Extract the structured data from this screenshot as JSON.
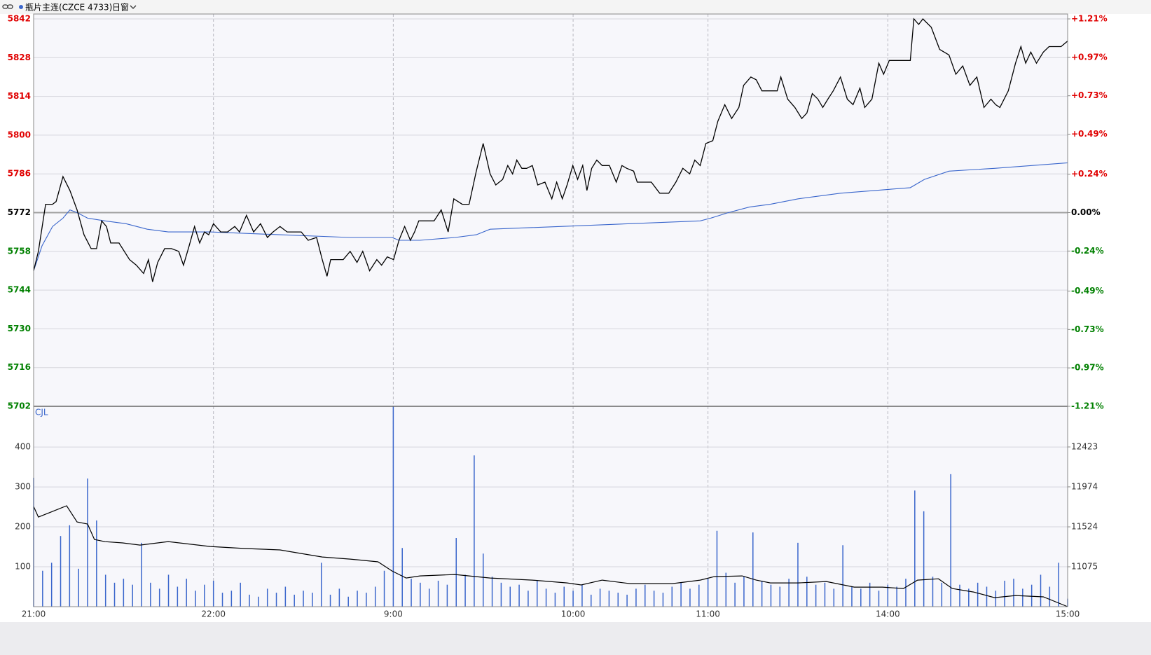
{
  "header": {
    "symbol": "瓶片主连(CZCE 4733)",
    "period": "日窗"
  },
  "chart_data": [
    {
      "type": "line",
      "xlim": [
        0,
        345
      ],
      "ylim": [
        5702,
        5842
      ],
      "yticks": [
        5842,
        5828,
        5814,
        5800,
        5786,
        5772,
        5758,
        5744,
        5730,
        5716,
        5702
      ],
      "y2lim": [
        -1.21,
        1.21
      ],
      "y2ticks": [
        {
          "value": 1.21,
          "label": "+1.21%"
        },
        {
          "value": 0.97,
          "label": "+0.97%"
        },
        {
          "value": 0.73,
          "label": "+0.73%"
        },
        {
          "value": 0.49,
          "label": "+0.49%"
        },
        {
          "value": 0.24,
          "label": "+0.24%"
        },
        {
          "value": 0,
          "label": "0.00%"
        },
        {
          "value": -0.24,
          "label": "-0.24%"
        },
        {
          "value": -0.49,
          "label": "-0.49%"
        },
        {
          "value": -0.73,
          "label": "-0.73%"
        },
        {
          "value": -0.97,
          "label": "-0.97%"
        },
        {
          "value": -1.21,
          "label": "-1.21%"
        }
      ],
      "up_color": "#e00000",
      "down_color": "#008000",
      "flat_color": "#000000",
      "grid": true,
      "series": [
        {
          "color": "#000000",
          "x": [
            0,
            1.6,
            4,
            6.3,
            7.5,
            9.8,
            12.1,
            14.5,
            16.8,
            19.2,
            21,
            22.7,
            24.3,
            25.7,
            28.5,
            32,
            34.3,
            36.7,
            38.3,
            39.7,
            41.4,
            43.7,
            46,
            48.4,
            50,
            51.9,
            53.7,
            55.4,
            57,
            58.4,
            60,
            62.4,
            64.7,
            67.1,
            68.7,
            71,
            73.4,
            75.7,
            78,
            79.9,
            82.2,
            84.6,
            89.3,
            91.6,
            94.4,
            96.3,
            97.9,
            99.1,
            103.3,
            105.6,
            107.9,
            109.8,
            112.1,
            114.5,
            116.1,
            118,
            120.1,
            121.9,
            123.8,
            125.7,
            127.1,
            128.5,
            131.3,
            133.6,
            136,
            138.3,
            140.2,
            143,
            145.3,
            147.7,
            150,
            152.3,
            154.2,
            156.5,
            158.2,
            159.8,
            161.2,
            162.9,
            164.5,
            166.4,
            168.2,
            170.6,
            172.9,
            174.5,
            176.4,
            178,
            179.9,
            181.5,
            183.2,
            184.6,
            186.2,
            187.9,
            189.7,
            192.1,
            194.4,
            196.3,
            197.9,
            200.2,
            201.4,
            206.1,
            208.9,
            211.9,
            214.3,
            216.6,
            218.9,
            220.6,
            222.4,
            224.3,
            226.6,
            228.3,
            230.6,
            232.9,
            235.3,
            236.9,
            239.3,
            241.1,
            243,
            245.8,
            248.1,
            249.3,
            251.6,
            254,
            256.3,
            258,
            259.8,
            261.7,
            263.3,
            265,
            266.8,
            269.2,
            271.5,
            273.4,
            275.7,
            277.3,
            279.7,
            282,
            283.6,
            285.5,
            288.3,
            292.5,
            293.7,
            295.3,
            296.7,
            299.5,
            302.3,
            305.4,
            307.7,
            310,
            312.4,
            314.7,
            317.1,
            319.4,
            321,
            322.4,
            325.2,
            327.6,
            329.4,
            331,
            332.7,
            334.6,
            336.9,
            338.8,
            342.8,
            345
          ],
          "values": [
            5751,
            5758,
            5775,
            5775,
            5776,
            5785,
            5780,
            5773,
            5764,
            5759,
            5759,
            5769,
            5767,
            5761,
            5761,
            5755,
            5753,
            5750,
            5755,
            5747,
            5754,
            5759,
            5759,
            5758,
            5753,
            5760,
            5767,
            5761,
            5765,
            5764,
            5768,
            5765,
            5765,
            5767,
            5765,
            5771,
            5765,
            5768,
            5763,
            5765,
            5767,
            5765,
            5765,
            5762,
            5763,
            5755,
            5749,
            5755,
            5755,
            5758,
            5754,
            5758,
            5751,
            5755,
            5753,
            5756,
            5755,
            5762,
            5767,
            5762,
            5765,
            5769,
            5769,
            5769,
            5773,
            5765,
            5777,
            5775,
            5775,
            5787,
            5797,
            5786,
            5782,
            5784,
            5789,
            5786,
            5791,
            5788,
            5788,
            5789,
            5782,
            5783,
            5777,
            5783,
            5777,
            5782,
            5789,
            5784,
            5789,
            5780,
            5788,
            5791,
            5789,
            5789,
            5783,
            5789,
            5788,
            5787,
            5783,
            5783,
            5779,
            5779,
            5783,
            5788,
            5786,
            5791,
            5789,
            5797,
            5798,
            5805,
            5811,
            5806,
            5810,
            5818,
            5821,
            5820,
            5816,
            5816,
            5816,
            5821,
            5813,
            5810,
            5806,
            5808,
            5815,
            5813,
            5810,
            5813,
            5816,
            5821,
            5813,
            5811,
            5817,
            5810,
            5813,
            5826,
            5822,
            5827,
            5827,
            5827,
            5842,
            5840,
            5842,
            5839,
            5831,
            5829,
            5822,
            5825,
            5818,
            5821,
            5810,
            5813,
            5811,
            5810,
            5816,
            5826,
            5832,
            5826,
            5830,
            5826,
            5830,
            5832,
            5832,
            5834
          ]
        },
        {
          "color": "#3a66cc",
          "x": [
            0,
            2.8,
            6.3,
            9.8,
            12.1,
            14.5,
            18,
            23.8,
            30.8,
            37.9,
            44.9,
            58.9,
            82.2,
            105.6,
            119.6,
            121.9,
            128.9,
            140.6,
            147.7,
            152.3,
            175.7,
            199,
            222.4,
            225.9,
            231.8,
            238.8,
            245.8,
            255.1,
            269.2,
            292.5,
            297.2,
            305.4,
            320.6,
            345
          ],
          "values": [
            5751,
            5760,
            5767,
            5770,
            5773,
            5772,
            5770,
            5769,
            5768,
            5766,
            5765,
            5765,
            5764,
            5763,
            5763,
            5762,
            5762,
            5763,
            5764,
            5766,
            5767,
            5768,
            5769,
            5770,
            5772,
            5774,
            5775,
            5777,
            5779,
            5781,
            5784,
            5787,
            5788,
            5790
          ]
        }
      ]
    },
    {
      "type": "bar",
      "title": "CJL",
      "xlim": [
        0,
        345
      ],
      "xticks": [
        {
          "value": 0,
          "label": "21:00"
        },
        {
          "value": 60,
          "label": "22:00"
        },
        {
          "value": 120,
          "label": "9:00"
        },
        {
          "value": 180,
          "label": "10:00"
        },
        {
          "value": 225,
          "label": "11:00"
        },
        {
          "value": 285,
          "label": "14:00"
        },
        {
          "value": 345,
          "label": "15:00"
        }
      ],
      "ylim": [
        0,
        502
      ],
      "yticks": [
        100,
        200,
        300,
        400
      ],
      "y2lim": [
        10626,
        12880
      ],
      "y2ticks": [
        11075,
        11524,
        11974,
        12423
      ],
      "grid": true,
      "series": [
        {
          "color": "#3a66cc",
          "x": [
            0,
            3,
            6,
            9,
            12,
            15,
            18,
            21,
            24,
            27,
            30,
            33,
            36,
            39,
            42,
            45,
            48,
            51,
            54,
            57,
            60,
            63,
            66,
            69,
            72,
            75,
            78,
            81,
            84,
            87,
            90,
            93,
            96,
            99,
            102,
            105,
            108,
            111,
            114,
            117,
            120,
            123,
            126,
            129,
            132,
            135,
            138,
            141,
            144,
            147,
            150,
            153,
            156,
            159,
            162,
            165,
            168,
            171,
            174,
            177,
            180,
            183,
            186,
            189,
            192,
            195,
            198,
            201,
            204,
            207,
            210,
            213,
            216,
            219,
            222,
            225,
            228,
            231,
            234,
            237,
            240,
            243,
            246,
            249,
            252,
            255,
            258,
            261,
            264,
            267,
            270,
            273,
            276,
            279,
            282,
            285,
            288,
            291,
            294,
            297,
            300,
            303,
            306,
            309,
            312,
            315,
            318,
            321,
            324,
            327,
            330,
            333,
            336,
            339,
            342,
            345
          ],
          "values": [
            323,
            90,
            110,
            177,
            204,
            95,
            321,
            216,
            80,
            60,
            70,
            55,
            160,
            60,
            45,
            80,
            50,
            70,
            40,
            55,
            65,
            35,
            40,
            60,
            30,
            25,
            45,
            35,
            50,
            30,
            40,
            35,
            110,
            30,
            45,
            25,
            40,
            35,
            50,
            90,
            502,
            147,
            70,
            60,
            45,
            65,
            55,
            172,
            80,
            379,
            133,
            75,
            60,
            50,
            55,
            40,
            65,
            45,
            35,
            50,
            40,
            55,
            30,
            45,
            40,
            35,
            30,
            45,
            55,
            40,
            35,
            50,
            60,
            45,
            55,
            70,
            190,
            85,
            60,
            75,
            186,
            65,
            55,
            50,
            70,
            160,
            75,
            55,
            60,
            45,
            154,
            50,
            45,
            60,
            40,
            55,
            50,
            70,
            291,
            239,
            75,
            60,
            332,
            55,
            45,
            60,
            50,
            40,
            65,
            70,
            45,
            55,
            80,
            50,
            110,
            20
          ]
        },
        {
          "color": "#000000",
          "axis": "y2",
          "x": [
            0,
            1.6,
            6.3,
            11,
            14.5,
            18,
            20.3,
            23.8,
            29.7,
            35.5,
            44.9,
            58.9,
            70.6,
            82.2,
            89.3,
            96.3,
            105.6,
            114.9,
            119.6,
            124.3,
            128.9,
            140.6,
            152.3,
            166.4,
            178,
            182.7,
            189.7,
            199,
            213.1,
            222.4,
            227.1,
            236.4,
            241.1,
            245.8,
            255.1,
            264.5,
            273.8,
            283.2,
            290.2,
            294.9,
            301.9,
            306.5,
            313.6,
            320.6,
            327.6,
            336.9,
            345
          ],
          "values": [
            11753,
            11634,
            11697,
            11761,
            11579,
            11556,
            11382,
            11357,
            11343,
            11319,
            11358,
            11303,
            11280,
            11264,
            11224,
            11185,
            11161,
            11130,
            11027,
            10948,
            10972,
            10988,
            10948,
            10925,
            10893,
            10870,
            10925,
            10885,
            10885,
            10925,
            10964,
            10972,
            10925,
            10893,
            10893,
            10909,
            10846,
            10846,
            10830,
            10925,
            10940,
            10830,
            10791,
            10728,
            10751,
            10736,
            10626
          ]
        }
      ]
    }
  ]
}
